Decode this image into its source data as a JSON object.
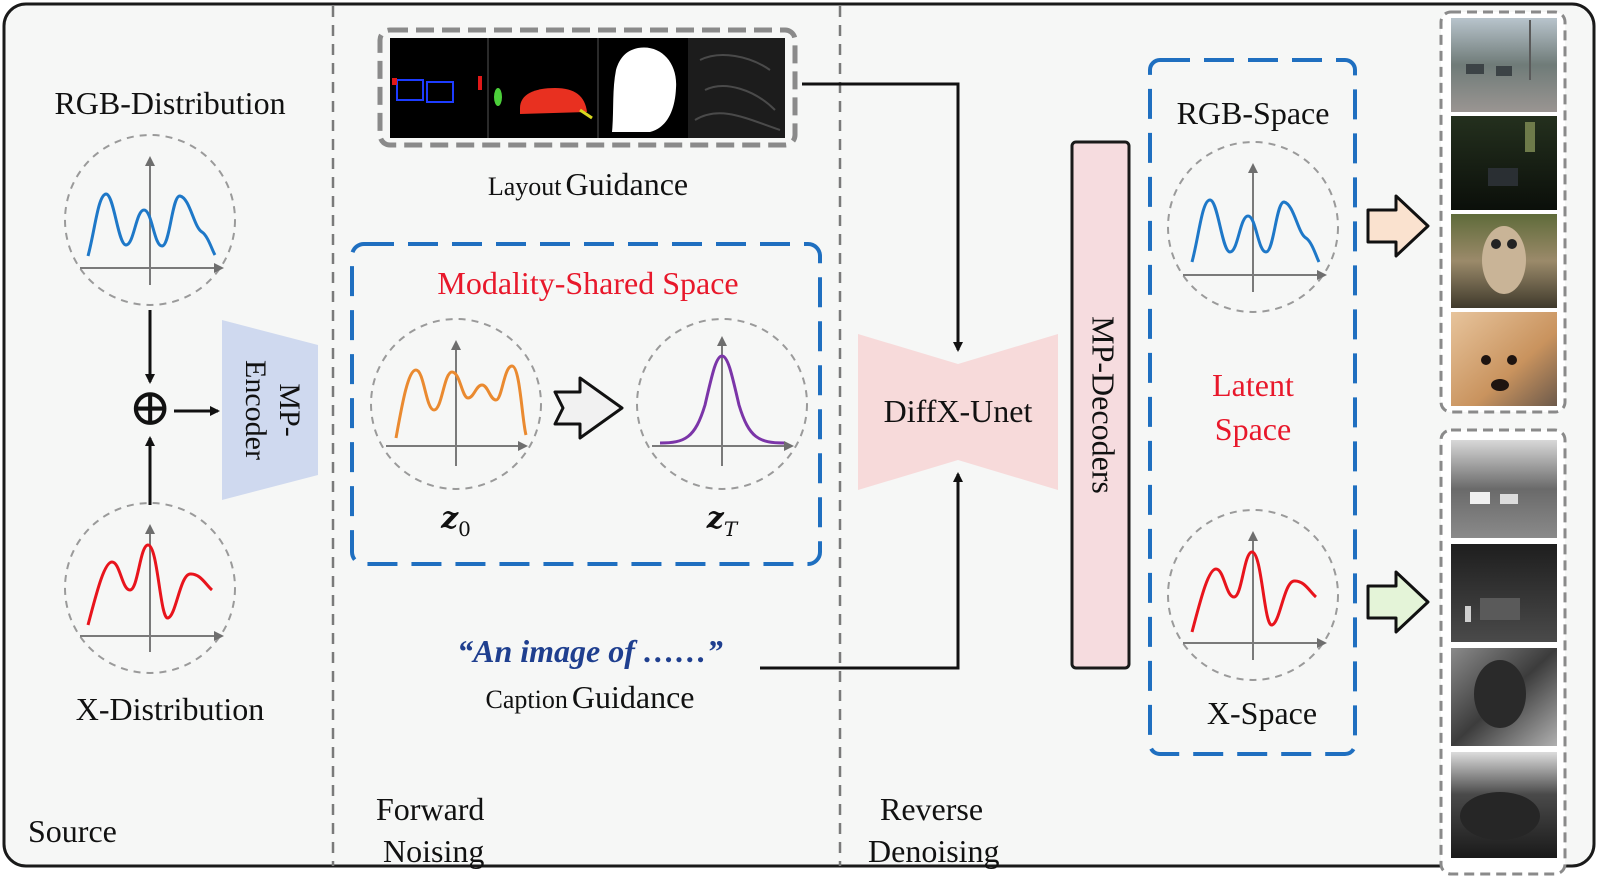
{
  "colors": {
    "frame": "#1a1a1a",
    "panel_bg": "#f6f7f6",
    "divider": "#7a7a7a",
    "blue_dash": "#1f6fc0",
    "red_text": "#e8182b",
    "blue_caption": "#1f3f8f",
    "rgb_curve": "#1e78c8",
    "x_curve": "#e8141c",
    "z0_curve": "#ea8a30",
    "zt_curve": "#7b35a8",
    "encoder_fill": "#cfd9ef",
    "unet_fill": "#f7dada",
    "decoder_fill": "#f6dcdf"
  },
  "source": {
    "rgb_label": "RGB-Distribution",
    "x_label": "X-Distribution",
    "oplus": "⊕",
    "stage_label": "Source",
    "encoder_line1": "MP-",
    "encoder_line2": "Encoder"
  },
  "forward": {
    "layout_word": "Layout",
    "layout_guidance": "Guidance",
    "shared_title": "Modality-Shared Space",
    "z0": "z",
    "z0_sub": "0",
    "zt": "z",
    "zt_sub": "T",
    "caption_text": "“An image of  ……”",
    "caption_word": "Caption",
    "caption_guidance": "Guidance",
    "stage_line1": "Forward",
    "stage_line2": "Noising"
  },
  "reverse": {
    "unet_label": "DiffX-Unet",
    "decoder_label": "MP-Decoders",
    "rgb_space": "RGB-Space",
    "latent_line1": "Latent",
    "latent_line2": "Space",
    "x_space": "X-Space",
    "stage_line1": "Reverse",
    "stage_line2": "Denoising"
  },
  "icons": [
    "curve-plot-icon",
    "arrow-right-icon",
    "block-arrow-icon"
  ]
}
